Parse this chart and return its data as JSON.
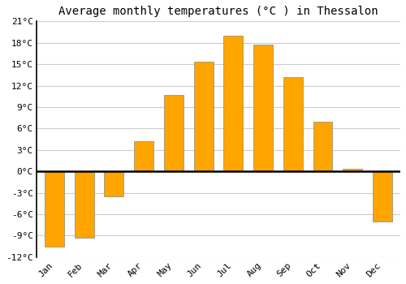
{
  "title": "Average monthly temperatures (°C ) in Thessalon",
  "months": [
    "Jan",
    "Feb",
    "Mar",
    "Apr",
    "May",
    "Jun",
    "Jul",
    "Aug",
    "Sep",
    "Oct",
    "Nov",
    "Dec"
  ],
  "values": [
    -10.5,
    -9.3,
    -3.5,
    4.2,
    10.7,
    15.3,
    19.0,
    17.7,
    13.2,
    7.0,
    0.4,
    -7.0
  ],
  "bar_color": "#FFA500",
  "bar_edge_color": "#888888",
  "ylim": [
    -12,
    21
  ],
  "yticks": [
    -12,
    -9,
    -6,
    -3,
    0,
    3,
    6,
    9,
    12,
    15,
    18,
    21
  ],
  "ytick_labels": [
    "-12°C",
    "-9°C",
    "-6°C",
    "-3°C",
    "0°C",
    "3°C",
    "6°C",
    "9°C",
    "12°C",
    "15°C",
    "18°C",
    "21°C"
  ],
  "plot_bg_color": "#ffffff",
  "fig_bg_color": "#ffffff",
  "grid_color": "#cccccc",
  "title_fontsize": 10,
  "tick_fontsize": 8,
  "bar_width": 0.65
}
